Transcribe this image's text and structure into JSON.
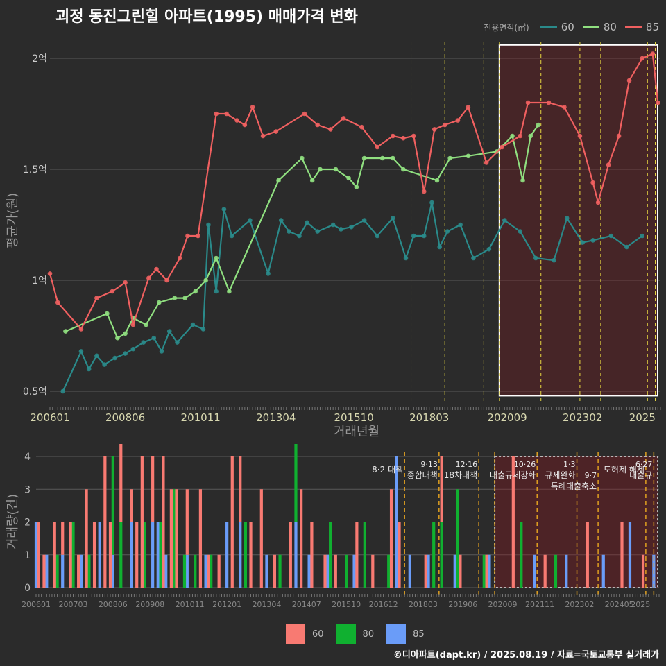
{
  "title": "괴정 동진그린힐 아파트(1995) 매매가격 변화",
  "credit": "©디아파트(dapt.kr) / 2025.08.19 / 자료=국토교통부 실거래가",
  "colors": {
    "s60": "#2a8a8a",
    "s80": "#90e080",
    "s85": "#f06060",
    "b60": "#f87a72",
    "b80": "#10b030",
    "b85": "#6a9cf8",
    "policy": "#e6d640",
    "highlight": "#ffffff"
  },
  "legend": {
    "title": "전용면적(㎡)",
    "items": [
      "60",
      "80",
      "85"
    ]
  },
  "chart_data": [
    {
      "type": "line",
      "xlabel": "거래년월",
      "ylabel": "평균가(원)",
      "x_ticks": [
        "200601",
        "200806",
        "201011",
        "201304",
        "201510",
        "201803",
        "202009",
        "202302",
        "2025"
      ],
      "y_ticks": [
        "0.5억",
        "1억",
        "1.5억",
        "2억"
      ],
      "ylim_eok": [
        0.45,
        2.1
      ],
      "x_range": [
        "2006-01",
        "2025-08"
      ],
      "policy_dates": [
        "2017-08",
        "2018-09",
        "2019-12",
        "2020-06",
        "2021-10",
        "2023-01",
        "2023-09",
        "2025-03",
        "2025-06"
      ],
      "highlight_range": [
        "2020-06",
        "2025-08"
      ],
      "series": [
        {
          "name": "60",
          "x": [
            "2006-06",
            "2007-01",
            "2007-04",
            "2007-07",
            "2007-10",
            "2008-02",
            "2008-06",
            "2008-09",
            "2009-01",
            "2009-05",
            "2009-08",
            "2009-11",
            "2010-02",
            "2010-08",
            "2010-12",
            "2011-02",
            "2011-05",
            "2011-08",
            "2011-11",
            "2012-06",
            "2013-01",
            "2013-06",
            "2013-09",
            "2014-01",
            "2014-04",
            "2014-08",
            "2015-02",
            "2015-05",
            "2015-09",
            "2016-02",
            "2016-07",
            "2017-01",
            "2017-06",
            "2017-09",
            "2018-01",
            "2018-04",
            "2018-07",
            "2018-10",
            "2019-03",
            "2019-08",
            "2020-02",
            "2020-08",
            "2021-02",
            "2021-08",
            "2022-03",
            "2022-08",
            "2023-02",
            "2023-06",
            "2024-01",
            "2024-07",
            "2025-01"
          ],
          "values": [
            0.5,
            0.68,
            0.6,
            0.66,
            0.62,
            0.65,
            0.67,
            0.69,
            0.72,
            0.74,
            0.68,
            0.77,
            0.72,
            0.8,
            0.78,
            1.25,
            0.95,
            1.32,
            1.2,
            1.27,
            1.03,
            1.27,
            1.22,
            1.2,
            1.26,
            1.22,
            1.25,
            1.23,
            1.24,
            1.27,
            1.2,
            1.28,
            1.1,
            1.2,
            1.2,
            1.35,
            1.15,
            1.22,
            1.25,
            1.1,
            1.14,
            1.27,
            1.22,
            1.1,
            1.09,
            1.28,
            1.17,
            1.18,
            1.2,
            1.15,
            1.2
          ]
        },
        {
          "name": "80",
          "x": [
            "2006-07",
            "2007-11",
            "2008-03",
            "2008-06",
            "2008-09",
            "2009-02",
            "2009-07",
            "2010-01",
            "2010-05",
            "2010-09",
            "2011-01",
            "2011-05",
            "2011-10",
            "2013-05",
            "2014-02",
            "2014-06",
            "2014-09",
            "2015-03",
            "2015-08",
            "2015-11",
            "2016-02",
            "2016-09",
            "2017-01",
            "2017-05",
            "2018-06",
            "2018-11",
            "2019-06",
            "2020-05",
            "2020-11",
            "2021-03",
            "2021-06",
            "2021-09"
          ],
          "values": [
            0.77,
            0.85,
            0.74,
            0.76,
            0.83,
            0.8,
            0.9,
            0.92,
            0.92,
            0.95,
            1.0,
            1.1,
            0.95,
            1.45,
            1.55,
            1.45,
            1.5,
            1.5,
            1.46,
            1.42,
            1.55,
            1.55,
            1.55,
            1.5,
            1.45,
            1.55,
            1.56,
            1.58,
            1.65,
            1.45,
            1.65,
            1.7
          ]
        },
        {
          "name": "85",
          "x": [
            "2006-01",
            "2006-04",
            "2007-01",
            "2007-07",
            "2008-01",
            "2008-06",
            "2008-09",
            "2009-03",
            "2009-06",
            "2009-10",
            "2010-03",
            "2010-06",
            "2010-10",
            "2011-05",
            "2011-09",
            "2012-01",
            "2012-04",
            "2012-07",
            "2012-11",
            "2013-04",
            "2014-03",
            "2014-08",
            "2015-01",
            "2015-06",
            "2016-01",
            "2016-07",
            "2017-01",
            "2017-05",
            "2017-09",
            "2018-01",
            "2018-05",
            "2018-09",
            "2019-02",
            "2019-06",
            "2020-01",
            "2020-07",
            "2021-02",
            "2021-05",
            "2022-01",
            "2022-07",
            "2023-01",
            "2023-06",
            "2023-08",
            "2023-12",
            "2024-04",
            "2024-08",
            "2025-01",
            "2025-05",
            "2025-07"
          ],
          "values": [
            1.03,
            0.9,
            0.78,
            0.92,
            0.95,
            0.99,
            0.8,
            1.01,
            1.05,
            1.0,
            1.1,
            1.2,
            1.2,
            1.75,
            1.75,
            1.72,
            1.7,
            1.78,
            1.65,
            1.67,
            1.75,
            1.7,
            1.68,
            1.73,
            1.69,
            1.6,
            1.65,
            1.64,
            1.65,
            1.4,
            1.68,
            1.7,
            1.72,
            1.78,
            1.53,
            1.6,
            1.65,
            1.8,
            1.8,
            1.78,
            1.65,
            1.44,
            1.35,
            1.52,
            1.65,
            1.9,
            2.0,
            2.02,
            1.8
          ]
        }
      ]
    },
    {
      "type": "bar",
      "ylabel": "거래량(건)",
      "x_ticks": [
        "200601",
        "200703",
        "200806",
        "200908",
        "201011",
        "201201",
        "201304",
        "201407",
        "201510",
        "201612",
        "201803",
        "201906",
        "202009",
        "202111",
        "202302",
        "202405",
        "2025"
      ],
      "y_ticks": [
        "0",
        "1",
        "2",
        "3",
        "4"
      ],
      "ylim": [
        0,
        4
      ],
      "policy_dates": [
        "2017-08",
        "2018-09",
        "2019-12",
        "2020-06",
        "2021-10",
        "2023-01",
        "2023-09",
        "2025-03",
        "2025-06"
      ],
      "highlight_range": [
        "2020-06",
        "2025-08"
      ],
      "annotations": [
        {
          "date": "2017-08",
          "lines": [
            "8·2 대책"
          ]
        },
        {
          "date": "2018-09",
          "lines": [
            "9·13",
            "종합대책"
          ]
        },
        {
          "date": "2019-12",
          "lines": [
            "12·16",
            "18차대책"
          ]
        },
        {
          "date": "2021-10",
          "lines": [
            "10·26",
            "대출규제강화"
          ]
        },
        {
          "date": "2023-01",
          "lines": [
            "1·3",
            "규제완화"
          ]
        },
        {
          "date": "2023-09",
          "lines": [
            "9·7",
            "특례대출축소"
          ]
        },
        {
          "date": "2025-03",
          "lines": [
            "토허제 해제"
          ]
        },
        {
          "date": "2025-06",
          "lines": [
            "6·27",
            "대출규"
          ]
        }
      ],
      "series": [
        {
          "name": "60",
          "x": [
            "2006-02",
            "2006-04",
            "2006-08",
            "2006-11",
            "2007-02",
            "2007-05",
            "2007-08",
            "2007-11",
            "2008-03",
            "2008-05",
            "2008-09",
            "2009-01",
            "2009-03",
            "2009-05",
            "2009-09",
            "2010-01",
            "2010-04",
            "2010-06",
            "2010-10",
            "2011-03",
            "2011-06",
            "2011-10",
            "2012-03",
            "2012-06",
            "2012-10",
            "2013-02",
            "2013-07",
            "2014-01",
            "2014-05",
            "2014-09",
            "2015-02",
            "2015-06",
            "2016-02",
            "2016-08",
            "2017-03",
            "2017-06",
            "2018-04",
            "2018-10",
            "2019-05",
            "2020-03",
            "2021-01",
            "2022-01",
            "2023-05",
            "2024-06",
            "2025-02"
          ],
          "values": [
            2,
            1,
            2,
            1,
            2,
            1,
            3,
            2,
            4,
            2,
            3,
            1,
            2,
            4,
            2,
            4,
            3,
            3,
            2,
            3,
            1,
            1,
            4,
            2,
            2,
            3,
            1,
            2,
            3,
            2,
            1,
            1,
            2,
            1,
            3,
            2,
            1,
            2,
            1,
            1,
            4,
            1,
            2,
            2,
            1
          ]
        },
        {
          "name": "80",
          "x": [
            "2006-09",
            "2007-03",
            "2007-09",
            "2008-06",
            "2008-09",
            "2009-06",
            "2009-12",
            "2010-05",
            "2010-09",
            "2011-01",
            "2011-07",
            "2012-08",
            "2013-09",
            "2014-03",
            "2015-04",
            "2015-10",
            "2016-05",
            "2017-02",
            "2018-07",
            "2018-10",
            "2019-04",
            "2020-02",
            "2021-04",
            "2022-05"
          ],
          "values": [
            1,
            2,
            1,
            3,
            2,
            2,
            2,
            3,
            1,
            1,
            1,
            2,
            1,
            3,
            2,
            1,
            2,
            1,
            2,
            2,
            3,
            1,
            2,
            1
          ]
        },
        {
          "name": "85",
          "x": [
            "2006-01",
            "2006-05",
            "2006-11",
            "2007-06",
            "2008-01",
            "2008-06",
            "2009-01",
            "2009-09",
            "2009-11",
            "2010-02",
            "2010-10",
            "2011-05",
            "2012-01",
            "2012-06",
            "2013-04",
            "2014-03",
            "2014-08",
            "2015-03",
            "2016-01",
            "2017-05",
            "2017-10",
            "2018-05",
            "2019-03",
            "2020-04",
            "2021-09",
            "2022-09",
            "2023-11",
            "2024-09",
            "2025-06"
          ],
          "values": [
            2,
            1,
            1,
            1,
            2,
            1,
            2,
            2,
            2,
            1,
            1,
            1,
            2,
            2,
            1,
            2,
            1,
            1,
            1,
            4,
            1,
            1,
            1,
            1,
            1,
            1,
            1,
            2,
            1
          ]
        }
      ]
    }
  ]
}
